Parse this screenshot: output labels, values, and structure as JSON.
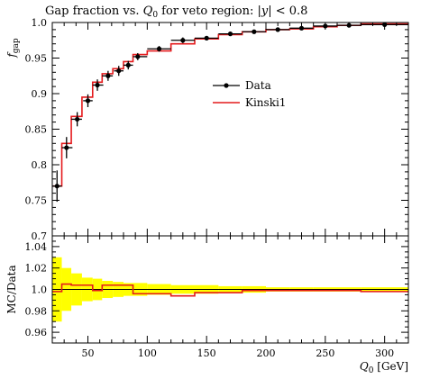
{
  "chart_data": [
    {
      "type": "line",
      "panel": "main",
      "title": "Gap fraction vs. Q_0 for veto region: |y| < 0.8",
      "ylabel": "f_gap",
      "xlim": [
        20,
        320
      ],
      "ylim": [
        0.7,
        1.0
      ],
      "x_ticks": [
        50,
        100,
        150,
        200,
        250,
        300
      ],
      "y_ticks": [
        0.75,
        0.8,
        0.85,
        0.9,
        0.95,
        1.0
      ],
      "y_tick_labels": [
        "0.75",
        "0.8",
        "0.85",
        "0.9",
        "0.95",
        "1.0"
      ],
      "legend": {
        "position": "right",
        "entries": [
          "Data",
          "Kinski1"
        ]
      },
      "series": [
        {
          "name": "Data",
          "style": "points-with-errors",
          "color": "#000000",
          "x": [
            24,
            32,
            41,
            50,
            58,
            67,
            76,
            84,
            92,
            110,
            130,
            150,
            170,
            190,
            210,
            230,
            250,
            270,
            300
          ],
          "y": [
            0.77,
            0.824,
            0.864,
            0.89,
            0.912,
            0.925,
            0.932,
            0.94,
            0.952,
            0.963,
            0.975,
            0.978,
            0.984,
            0.987,
            0.99,
            0.992,
            0.995,
            0.996,
            0.997
          ],
          "err": [
            0.022,
            0.015,
            0.01,
            0.009,
            0.008,
            0.007,
            0.007,
            0.006,
            0.005,
            0.004,
            0.004,
            0.003,
            0.003,
            0.002,
            0.002,
            0.002,
            0.002,
            0.002,
            0.002
          ],
          "xerr_lo": [
            4,
            4,
            5,
            4,
            4,
            5,
            4,
            4,
            4,
            10,
            10,
            10,
            10,
            10,
            10,
            10,
            10,
            10,
            20
          ],
          "xerr_hi": [
            4,
            5,
            4,
            4,
            5,
            4,
            4,
            4,
            8,
            10,
            10,
            10,
            10,
            10,
            10,
            10,
            10,
            10,
            20
          ]
        },
        {
          "name": "Kinski1",
          "style": "histogram",
          "color": "#e41a1c",
          "edges": [
            20,
            28,
            36,
            45,
            54,
            62,
            71,
            80,
            88,
            100,
            120,
            140,
            160,
            180,
            200,
            220,
            240,
            260,
            280,
            320
          ],
          "values": [
            0.77,
            0.83,
            0.868,
            0.895,
            0.916,
            0.928,
            0.935,
            0.945,
            0.955,
            0.96,
            0.97,
            0.977,
            0.983,
            0.987,
            0.99,
            0.991,
            0.994,
            0.996,
            0.998
          ]
        }
      ]
    },
    {
      "type": "line",
      "panel": "ratio",
      "ylabel": "MC/Data",
      "xlabel": "Q_0 [GeV]",
      "xlim": [
        20,
        320
      ],
      "ylim": [
        0.95,
        1.05
      ],
      "x_ticks": [
        50,
        100,
        150,
        200,
        250,
        300
      ],
      "x_tick_labels": [
        "50",
        "100",
        "150",
        "200",
        "250",
        "300"
      ],
      "y_ticks": [
        0.96,
        0.98,
        1.0,
        1.02,
        1.04
      ],
      "y_tick_labels": [
        "0.96",
        "0.98",
        "1.0",
        "1.02",
        "1.04"
      ],
      "band": {
        "color": "#ffff00",
        "edges": [
          20,
          28,
          36,
          45,
          54,
          62,
          71,
          80,
          88,
          100,
          120,
          140,
          160,
          180,
          200,
          220,
          240,
          260,
          280,
          320
        ],
        "half_width": [
          0.03,
          0.02,
          0.015,
          0.011,
          0.01,
          0.008,
          0.007,
          0.006,
          0.006,
          0.005,
          0.004,
          0.004,
          0.003,
          0.003,
          0.002,
          0.002,
          0.002,
          0.002,
          0.002
        ]
      },
      "series": [
        {
          "name": "Kinski1",
          "style": "histogram",
          "color": "#e41a1c",
          "edges": [
            20,
            28,
            36,
            45,
            54,
            62,
            71,
            80,
            88,
            100,
            120,
            140,
            160,
            180,
            200,
            220,
            240,
            260,
            280,
            320
          ],
          "values": [
            0.998,
            1.005,
            1.004,
            1.004,
            0.999,
            1.004,
            1.004,
            1.004,
            0.996,
            0.996,
            0.994,
            0.997,
            0.997,
            0.999,
            0.999,
            0.999,
            0.999,
            0.999,
            0.998
          ]
        }
      ]
    }
  ]
}
